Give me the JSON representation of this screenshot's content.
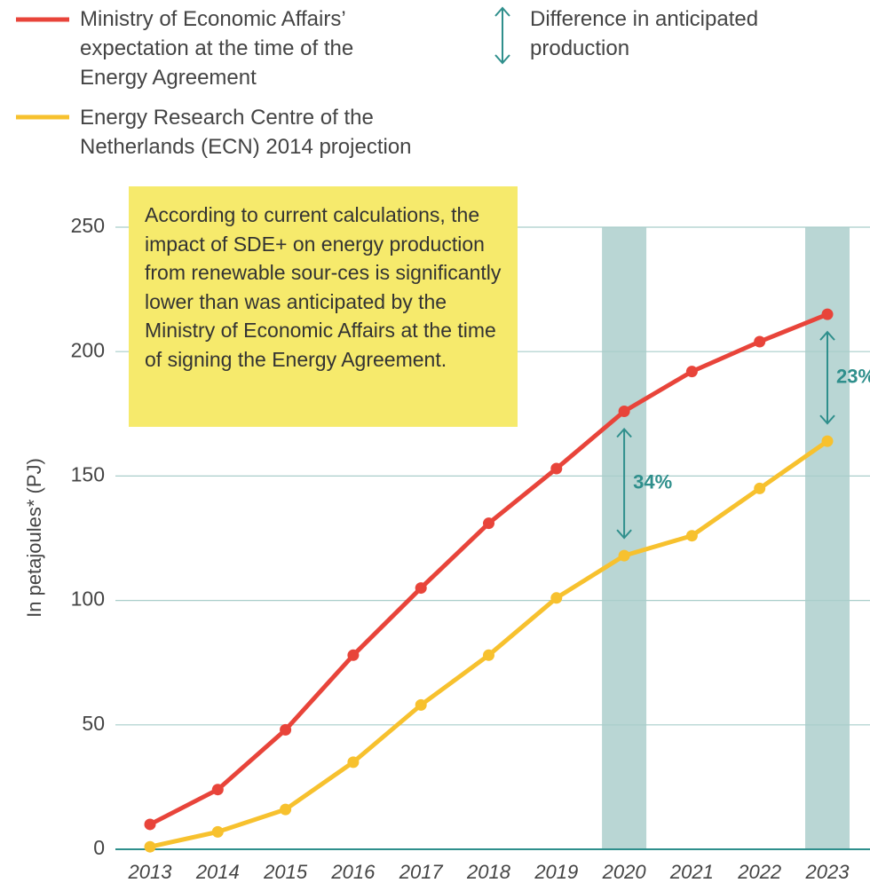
{
  "chart_data": {
    "type": "line",
    "ylabel": "In petajoules* (PJ)",
    "categories": [
      "2013",
      "2014",
      "2015",
      "2016",
      "2017",
      "2018",
      "2019",
      "2020",
      "2021",
      "2022",
      "2023"
    ],
    "series": [
      {
        "name": "Ministry of Economic Affairs’ expectation at the time of the Energy Agreement",
        "color": "#e8443a",
        "values": [
          10,
          24,
          48,
          78,
          105,
          131,
          153,
          176,
          192,
          204,
          215
        ]
      },
      {
        "name": "Energy Research Centre of the Netherlands (ECN) 2014 projection",
        "color": "#f7c12e",
        "values": [
          1,
          7,
          16,
          35,
          58,
          78,
          101,
          118,
          126,
          145,
          164
        ]
      }
    ],
    "ylim": [
      0,
      250
    ],
    "yticks": [
      0,
      50,
      100,
      150,
      200,
      250
    ],
    "grid": true,
    "difference_legend": "Difference in anticipated production",
    "annotations": [
      {
        "category": "2020",
        "label": "34%"
      },
      {
        "category": "2023",
        "label": "23%"
      }
    ],
    "note": "According to current calculations, the impact of SDE+ on energy production from renewable sour-ces is significantly lower than was anticipated by the Ministry of Economic Affairs at the time of signing the Energy Agreement."
  }
}
